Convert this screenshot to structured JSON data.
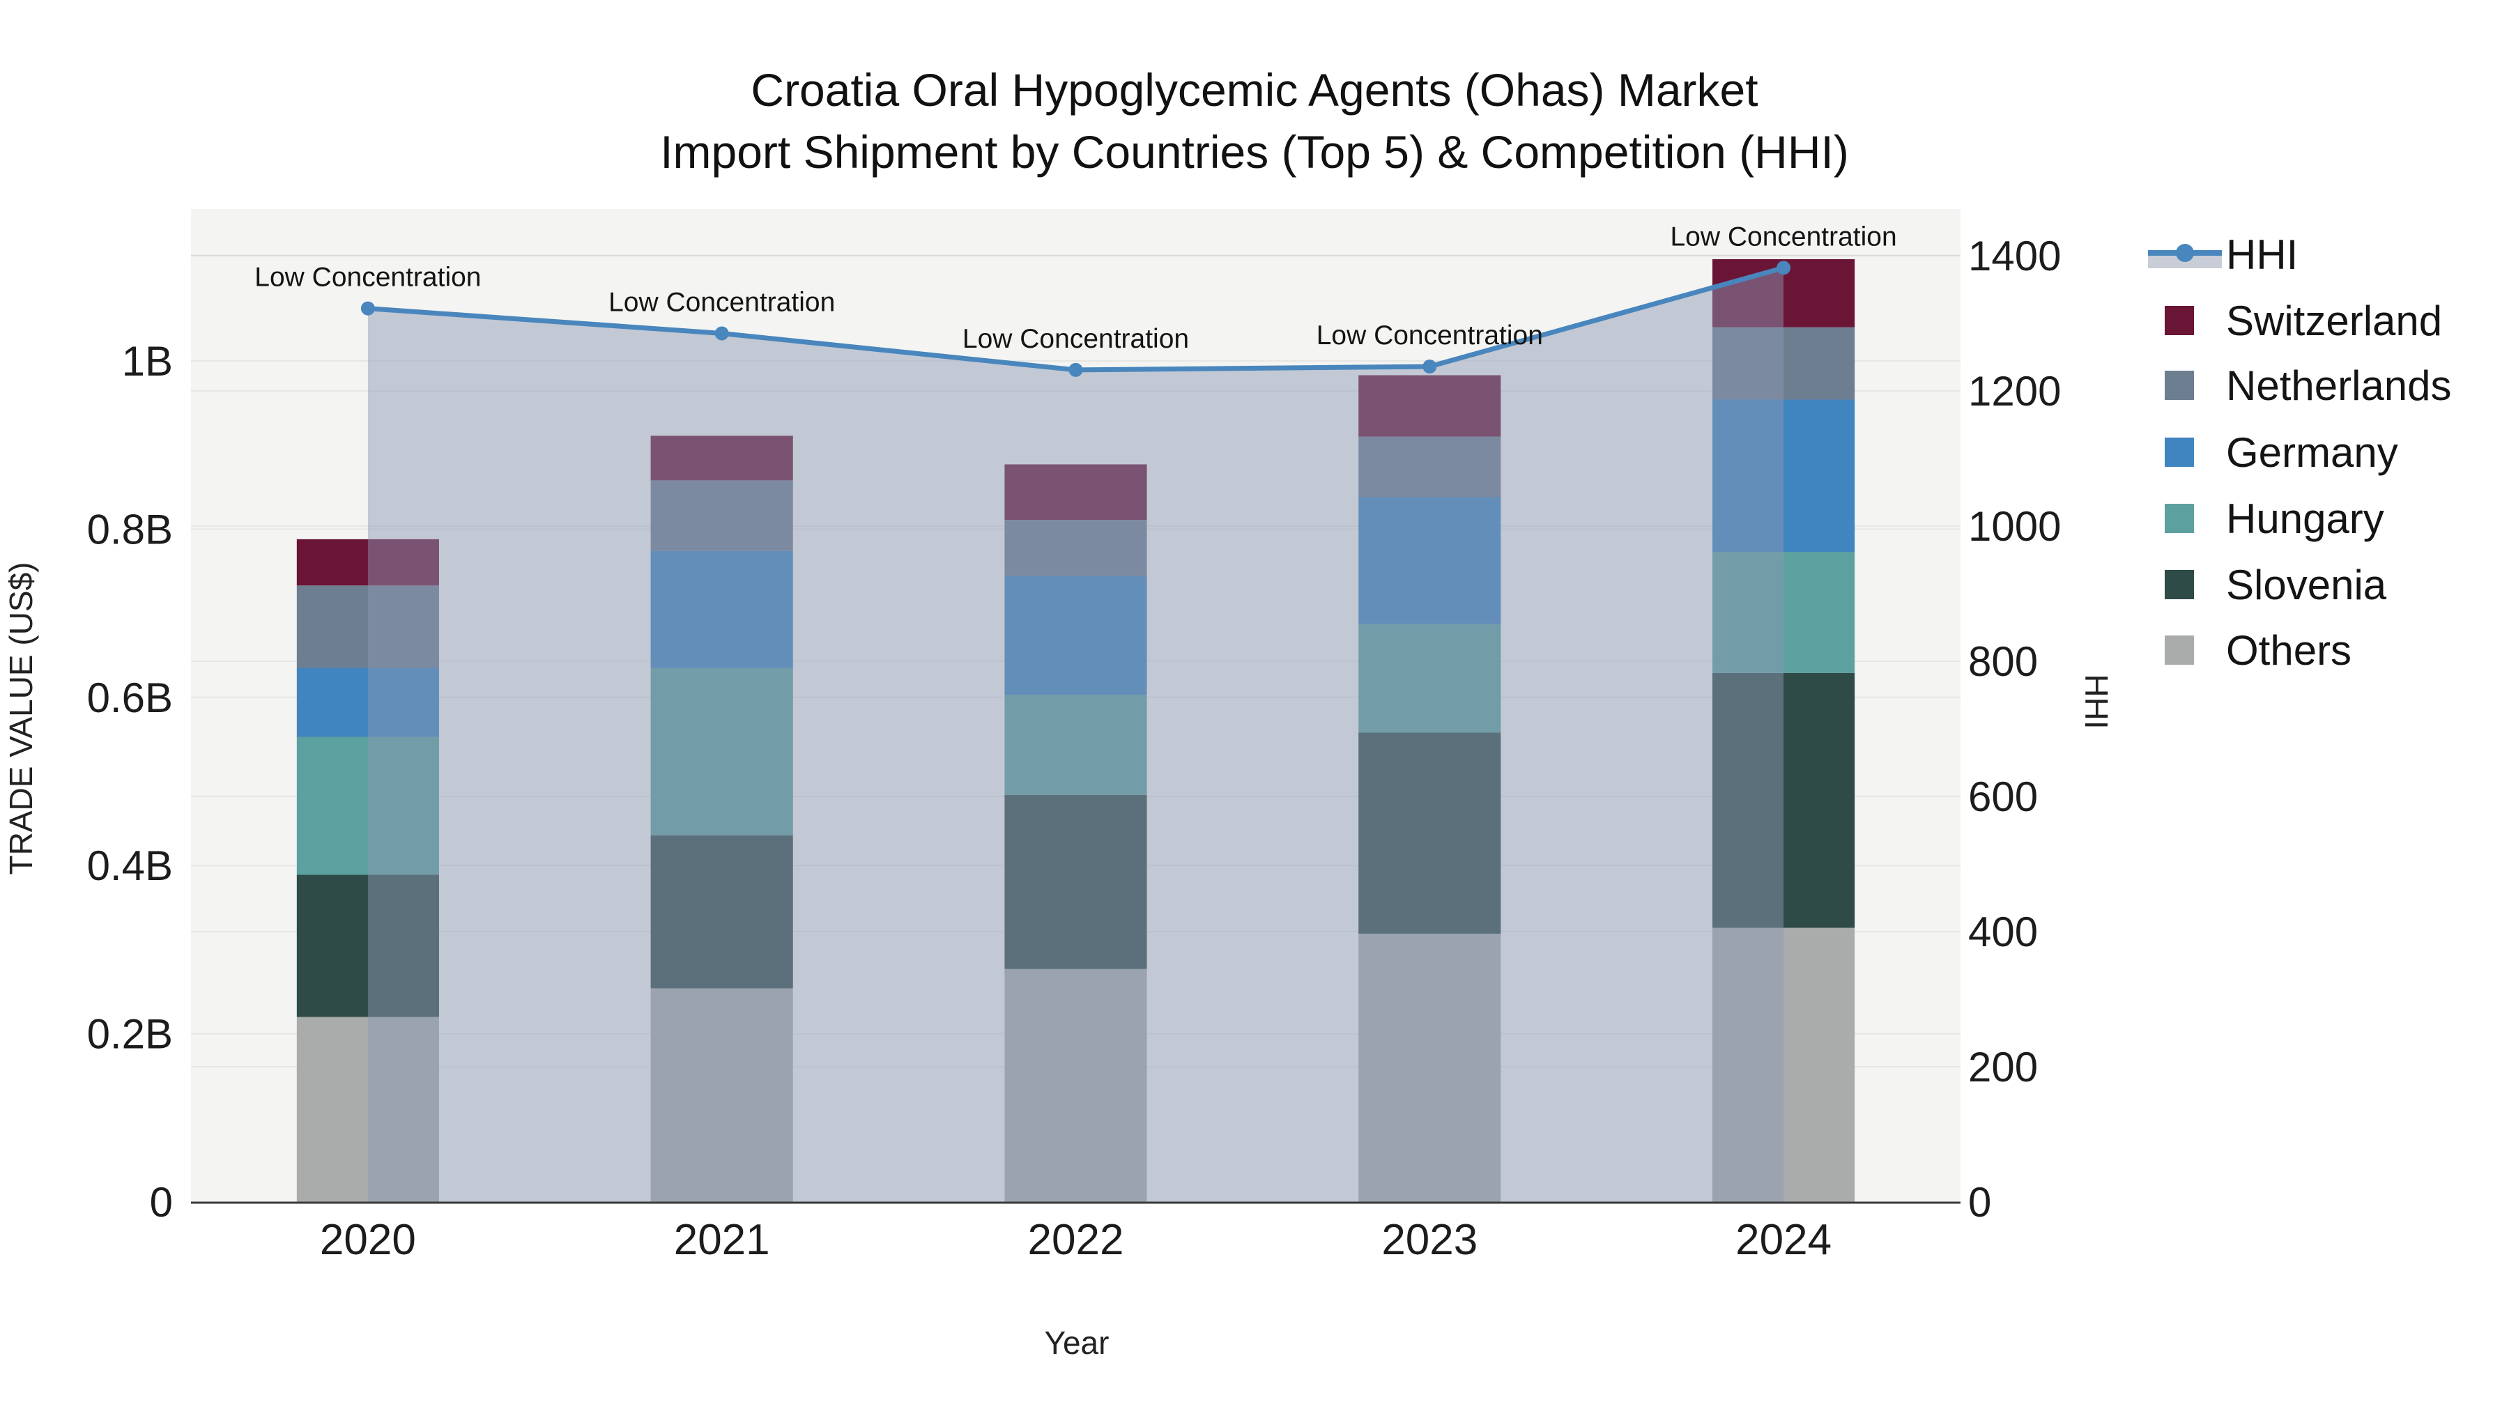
{
  "title": {
    "line1": "Croatia Oral Hypoglycemic Agents (Ohas) Market",
    "line2": "Import Shipment by Countries (Top 5) & Competition (HHI)"
  },
  "chart_data": {
    "type": "bar",
    "stacked": true,
    "title": "Croatia Oral Hypoglycemic Agents (Ohas) Market",
    "subtitle": "Import Shipment by Countries (Top 5) & Competition (HHI)",
    "xlabel": "Year",
    "ylabel": "TRADE VALUE (US$)",
    "y2label": "HHI",
    "categories": [
      "2020",
      "2021",
      "2022",
      "2023",
      "2024"
    ],
    "series": [
      {
        "name": "Others",
        "color": "#aaacab",
        "values": [
          0.22,
          0.254,
          0.277,
          0.319,
          0.326
        ]
      },
      {
        "name": "Slovenia",
        "color": "#2e4b47",
        "values": [
          0.169,
          0.182,
          0.207,
          0.239,
          0.303
        ]
      },
      {
        "name": "Hungary",
        "color": "#5ca0a0",
        "values": [
          0.164,
          0.199,
          0.119,
          0.129,
          0.144
        ]
      },
      {
        "name": "Germany",
        "color": "#4084c0",
        "values": [
          0.082,
          0.139,
          0.141,
          0.151,
          0.181
        ]
      },
      {
        "name": "Netherlands",
        "color": "#6d7e91",
        "values": [
          0.098,
          0.084,
          0.067,
          0.072,
          0.086
        ]
      },
      {
        "name": "Switzerland",
        "color": "#6a1536",
        "values": [
          0.055,
          0.053,
          0.066,
          0.073,
          0.081
        ]
      }
    ],
    "line_series": {
      "name": "HHI",
      "color": "#4886bd",
      "area_fill": "rgba(140,152,180,0.48)",
      "axis": "y2",
      "values": [
        1322,
        1285,
        1231,
        1236,
        1382
      ]
    },
    "annotations": [
      {
        "text": "Low Concentration",
        "category": "2020"
      },
      {
        "text": "Low Concentration",
        "category": "2021"
      },
      {
        "text": "Low Concentration",
        "category": "2022"
      },
      {
        "text": "Low Concentration",
        "category": "2023"
      },
      {
        "text": "Low Concentration",
        "category": "2024"
      }
    ],
    "y_ticks": [
      {
        "v": 0.0,
        "label": "0"
      },
      {
        "v": 0.2,
        "label": "0.2B"
      },
      {
        "v": 0.4,
        "label": "0.4B"
      },
      {
        "v": 0.6,
        "label": "0.6B"
      },
      {
        "v": 0.8,
        "label": "0.8B"
      },
      {
        "v": 1.0,
        "label": "1B"
      }
    ],
    "y2_ticks": [
      {
        "v": 0,
        "label": "0"
      },
      {
        "v": 200,
        "label": "200"
      },
      {
        "v": 400,
        "label": "400"
      },
      {
        "v": 600,
        "label": "600"
      },
      {
        "v": 800,
        "label": "800"
      },
      {
        "v": 1000,
        "label": "1000"
      },
      {
        "v": 1200,
        "label": "1200"
      },
      {
        "v": 1400,
        "label": "1400"
      },
      {
        "v": 1400,
        "label": "1400"
      }
    ],
    "ylim": [
      0,
      1.1806
    ],
    "y2lim": [
      0,
      1469
    ],
    "legend_position": "right",
    "legend_order": [
      "HHI",
      "Switzerland",
      "Netherlands",
      "Germany",
      "Hungary",
      "Slovenia",
      "Others"
    ],
    "grid": true,
    "plot_bg": "#f4f4f2",
    "grid_color": "rgba(0,0,0,0.055)",
    "axis_line_color": "#3a3a3a"
  }
}
